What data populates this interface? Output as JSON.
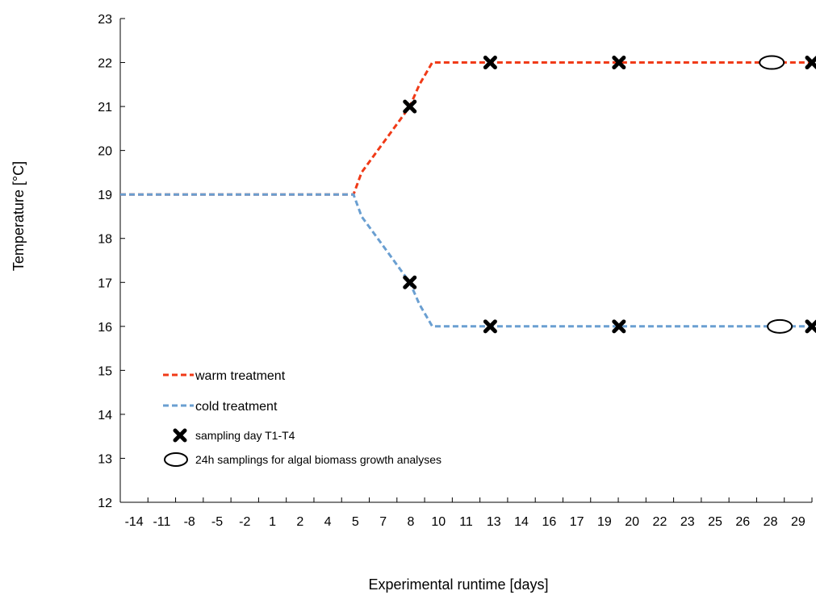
{
  "chart_data": {
    "type": "line",
    "xlabel": "Experimental runtime [days]",
    "ylabel": "Temperature [°C]",
    "ylim": [
      12,
      23
    ],
    "y_ticks": [
      "12",
      "13",
      "14",
      "15",
      "16",
      "17",
      "18",
      "19",
      "20",
      "21",
      "22",
      "23"
    ],
    "x_tick_labels": [
      "-14",
      "-11",
      "-8",
      "-5",
      "-2",
      "1",
      "2",
      "4",
      "5",
      "7",
      "8",
      "10",
      "11",
      "13",
      "14",
      "16",
      "17",
      "19",
      "20",
      "22",
      "23",
      "25",
      "26",
      "28",
      "29"
    ],
    "grid": false,
    "legend_position": "bottom-left",
    "series": [
      {
        "name": "warm treatment",
        "color": "#f03a17",
        "style": "dashed",
        "points": [
          [
            -14,
            19
          ],
          [
            0.5,
            19
          ],
          [
            1,
            19.5
          ],
          [
            2,
            20
          ],
          [
            3,
            20.5
          ],
          [
            4,
            21
          ],
          [
            4.6,
            21.5
          ],
          [
            5.4,
            22
          ],
          [
            29,
            22
          ]
        ]
      },
      {
        "name": "cold treatment",
        "color": "#6a9fd1",
        "style": "dashed",
        "points": [
          [
            -14,
            19
          ],
          [
            0.5,
            19
          ],
          [
            1,
            18.5
          ],
          [
            2,
            18
          ],
          [
            3,
            17.5
          ],
          [
            4,
            17
          ],
          [
            4.6,
            16.5
          ],
          [
            5.4,
            16
          ],
          [
            29,
            16
          ]
        ]
      }
    ],
    "markers": [
      {
        "name": "sampling day T1-T4",
        "symbol": "x",
        "points": [
          [
            4,
            21
          ],
          [
            9,
            22
          ],
          [
            17,
            22
          ],
          [
            29,
            22
          ],
          [
            4,
            17
          ],
          [
            9,
            16
          ],
          [
            17,
            16
          ],
          [
            29,
            16
          ]
        ]
      },
      {
        "name": "24h samplings for algal biomass growth analyses",
        "symbol": "ellipse",
        "points": [
          [
            26.5,
            22
          ],
          [
            27,
            16
          ]
        ]
      }
    ]
  }
}
